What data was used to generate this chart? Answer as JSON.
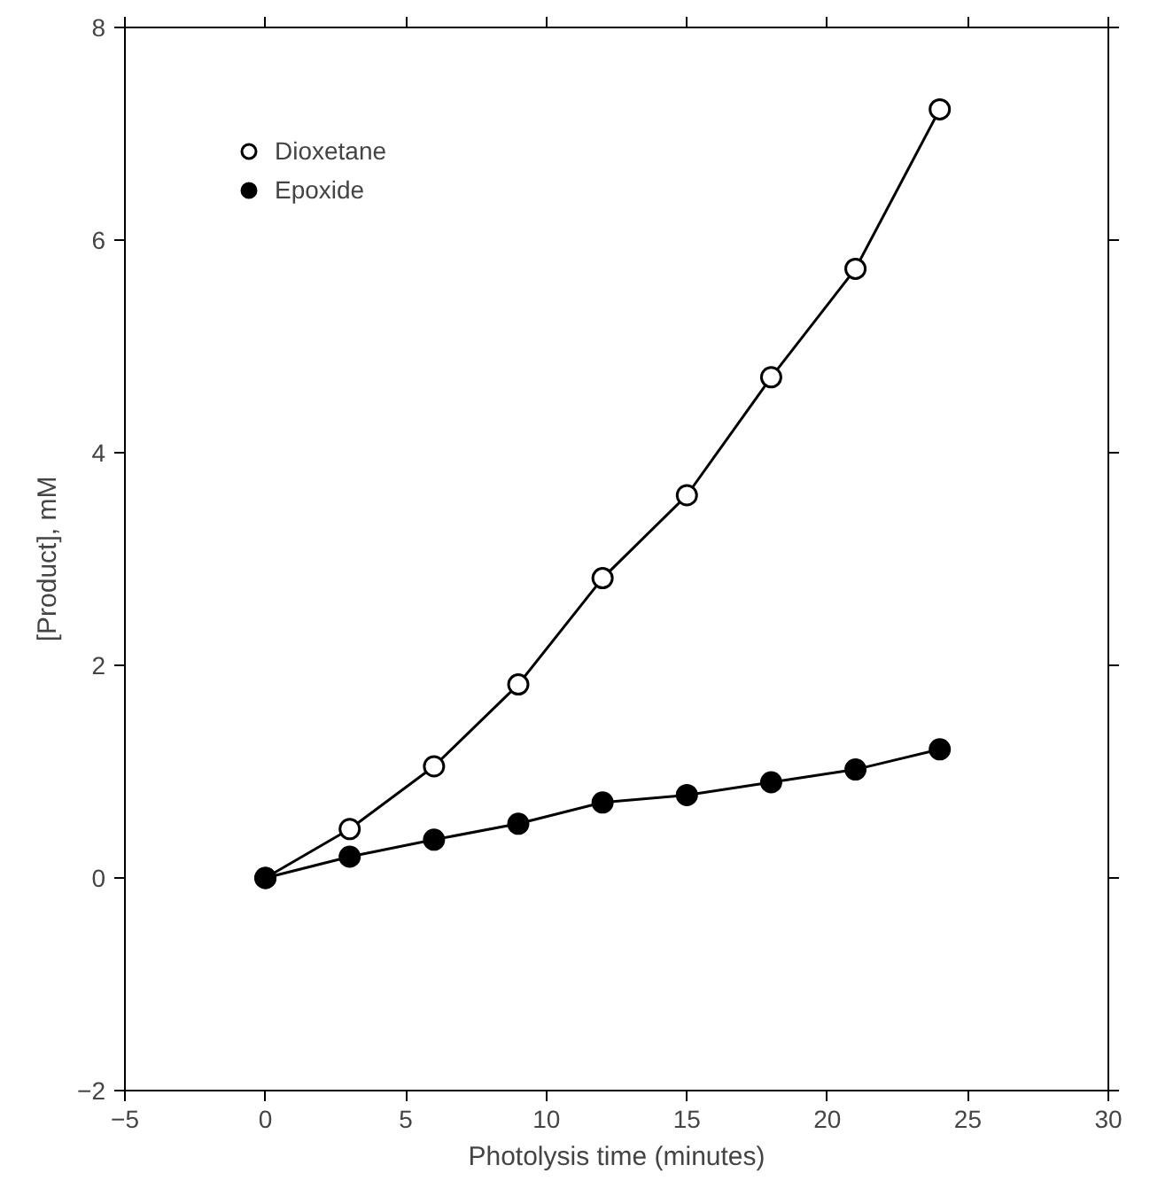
{
  "chart_data": {
    "type": "line",
    "xlabel": "Photolysis time (minutes)",
    "ylabel": "[Product], mM",
    "x": [
      0,
      3,
      6,
      9,
      12,
      15,
      18,
      21,
      24
    ],
    "series": [
      {
        "name": "Dioxetane",
        "color": "#ffffff",
        "values": [
          0,
          0.46,
          1.05,
          1.82,
          2.82,
          3.6,
          4.71,
          5.73,
          7.23
        ]
      },
      {
        "name": "Epoxide",
        "color": "#000000",
        "values": [
          0,
          0.2,
          0.36,
          0.51,
          0.71,
          0.78,
          0.9,
          1.02,
          1.21
        ]
      }
    ],
    "xlim": [
      -5,
      30
    ],
    "xticks": [
      -5,
      0,
      5,
      10,
      15,
      20,
      25,
      30
    ],
    "ylim": [
      -2,
      8
    ],
    "yticks": [
      -2,
      0,
      2,
      4,
      6,
      8
    ],
    "marker": "circle",
    "line_style": "solid",
    "grid": false,
    "legend": "top left"
  }
}
